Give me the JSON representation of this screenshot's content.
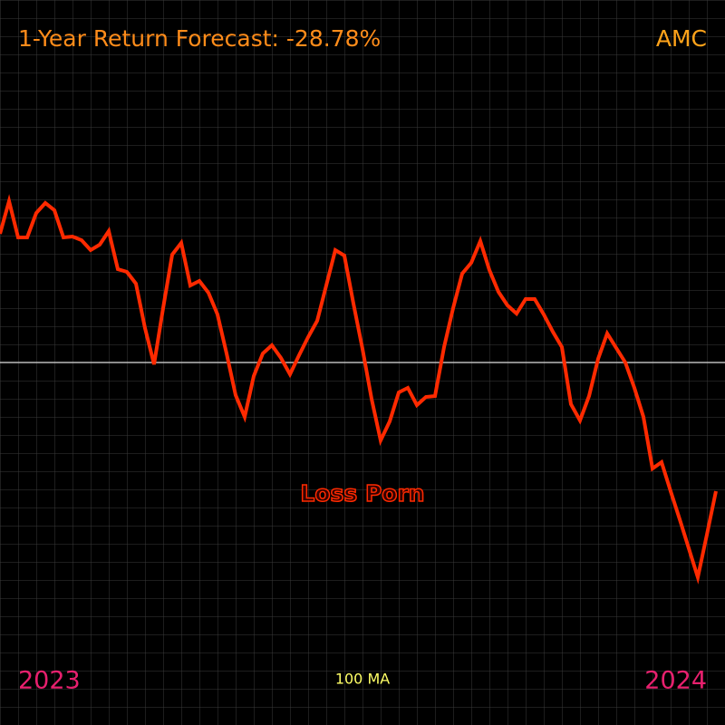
{
  "chart_data": {
    "type": "line",
    "title": "1-Year Return Forecast: -28.78%",
    "ticker": "AMC",
    "start_label": "2023",
    "end_label": "2024",
    "legend_label": "100 MA",
    "annotation": "Loss Porn",
    "color": "#ff2a00",
    "ylim": [
      -400,
      400
    ],
    "values": [
      142,
      178,
      138,
      138,
      165,
      176,
      168,
      138,
      139,
      135,
      124,
      130,
      145,
      103,
      100,
      87,
      38,
      -2,
      60,
      119,
      132,
      85,
      90,
      77,
      53,
      10,
      -36,
      -60,
      -15,
      10,
      19,
      5,
      -13,
      8,
      28,
      46,
      85,
      124,
      118,
      65,
      15,
      -40,
      -86,
      -65,
      -33,
      -28,
      -47,
      -38,
      -37,
      17,
      60,
      98,
      110,
      134,
      102,
      78,
      63,
      54,
      70,
      70,
      53,
      34,
      17,
      -46,
      -64,
      -37,
      4,
      32,
      16,
      0,
      -28,
      -60,
      -117,
      -110,
      -142,
      -173,
      -205,
      -237,
      -190,
      -142
    ]
  }
}
